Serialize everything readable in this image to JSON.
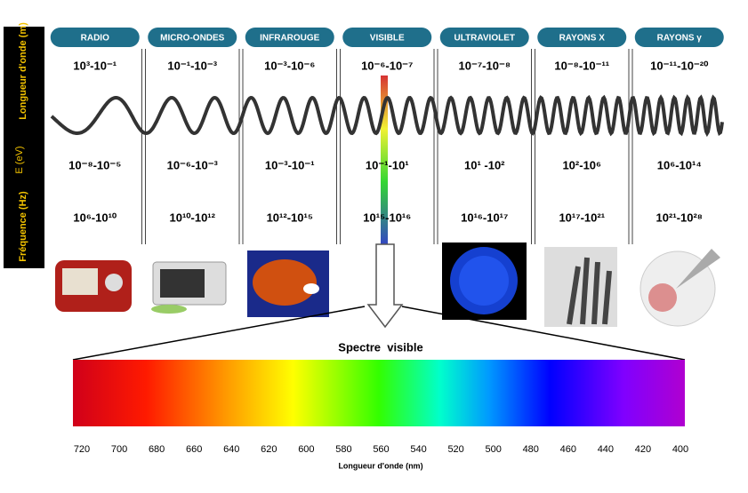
{
  "side_labels": {
    "wavelength": "Longueur d'onde (m)",
    "energy": "E (eV)",
    "frequency": "Fréquence (Hz)"
  },
  "bands": [
    {
      "name": "RADIO",
      "wavelength": "10³-10⁻¹",
      "energy": "10⁻⁸-10⁻⁵",
      "frequency": "10⁶-10¹⁰"
    },
    {
      "name": "MICRO-ONDES",
      "wavelength": "10⁻¹-10⁻³",
      "energy": "10⁻⁶-10⁻³",
      "frequency": "10¹⁰-10¹²"
    },
    {
      "name": "INFRAROUGE",
      "wavelength": "10⁻³-10⁻⁶",
      "energy": "10⁻³-10⁻¹",
      "frequency": "10¹²-10¹⁵"
    },
    {
      "name": "VISIBLE",
      "wavelength": "10⁻⁶-10⁻⁷",
      "energy": "10⁻¹-10¹",
      "frequency": "10¹⁵-10¹⁶"
    },
    {
      "name": "ULTRAVIOLET",
      "wavelength": "10⁻⁷-10⁻⁸",
      "energy": "10¹ -10²",
      "frequency": "10¹⁶-10¹⁷"
    },
    {
      "name": "RAYONS X",
      "wavelength": "10⁻⁸-10⁻¹¹",
      "energy": "10²-10⁶",
      "frequency": "10¹⁷-10²¹"
    },
    {
      "name": "RAYONS γ",
      "wavelength": "10⁻¹¹-10⁻²⁰",
      "energy": "10⁶-10¹⁴",
      "frequency": "10²¹-10²⁸"
    }
  ],
  "spectrum": {
    "title": "Spectre  visible",
    "ticks": [
      720,
      700,
      680,
      660,
      640,
      620,
      600,
      580,
      560,
      540,
      520,
      500,
      480,
      460,
      440,
      420,
      400
    ],
    "axis_label": "Longueur d'onde (nm)"
  }
}
